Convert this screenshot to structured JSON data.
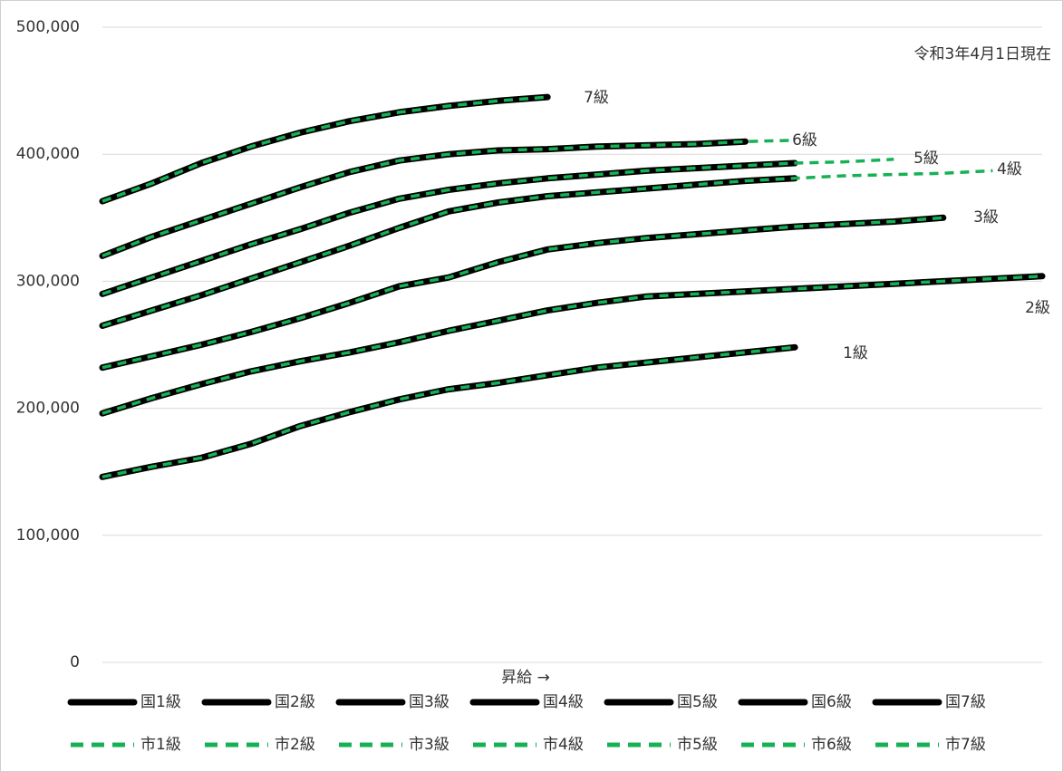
{
  "chart_data": {
    "type": "line",
    "note": "令和3年4月1日現在",
    "xlabel": "昇給 →",
    "categories": [
      null,
      null,
      null,
      null,
      null,
      null,
      null,
      null,
      null,
      null,
      null,
      null,
      null,
      null,
      null,
      null,
      null,
      null,
      null,
      null
    ],
    "ylim": [
      0,
      500000
    ],
    "yticks": [
      0,
      {
        "value": 100000,
        "label": "100,000"
      },
      {
        "value": 200000,
        "label": "200,000"
      },
      {
        "value": 300000,
        "label": "300,000"
      },
      {
        "value": 400000,
        "label": "400,000"
      },
      {
        "value": 500000,
        "label": "500,000"
      }
    ],
    "grid": true,
    "legend": "bottom",
    "series": [
      {
        "name": "国1級",
        "color": "#000000",
        "dashed": false,
        "values": [
          146000,
          154000,
          161000,
          172000,
          186000,
          197000,
          207000,
          215000,
          220000,
          226000,
          232000,
          236000,
          240000,
          244000,
          248000,
          null,
          null,
          null,
          null,
          null
        ]
      },
      {
        "name": "国2級",
        "color": "#000000",
        "dashed": false,
        "values": [
          196000,
          208000,
          219000,
          229000,
          237000,
          244000,
          252000,
          261000,
          269000,
          277000,
          283000,
          288000,
          290000,
          292000,
          294000,
          296000,
          298000,
          300000,
          302000,
          304000
        ]
      },
      {
        "name": "国3級",
        "color": "#000000",
        "dashed": false,
        "values": [
          232000,
          241000,
          250000,
          260000,
          271000,
          283000,
          296000,
          303000,
          315000,
          325000,
          330000,
          334000,
          337000,
          340000,
          343000,
          345000,
          347000,
          350000,
          null,
          null
        ]
      },
      {
        "name": "国4級",
        "color": "#000000",
        "dashed": false,
        "values": [
          265000,
          277000,
          289000,
          302000,
          315000,
          328000,
          342000,
          355000,
          362000,
          367000,
          370000,
          373000,
          376000,
          379000,
          381000,
          null,
          null,
          null,
          null,
          null
        ]
      },
      {
        "name": "国5級",
        "color": "#000000",
        "dashed": false,
        "values": [
          290000,
          303000,
          316000,
          329000,
          341000,
          354000,
          365000,
          372000,
          377000,
          381000,
          384000,
          387000,
          389000,
          391000,
          393000,
          null,
          null,
          null,
          null,
          null
        ]
      },
      {
        "name": "国6級",
        "color": "#000000",
        "dashed": false,
        "values": [
          320000,
          335000,
          348000,
          361000,
          374000,
          386000,
          395000,
          400000,
          403000,
          404000,
          406000,
          407000,
          408000,
          410000,
          null,
          null,
          null,
          null,
          null,
          null
        ]
      },
      {
        "name": "国7級",
        "color": "#000000",
        "dashed": false,
        "values": [
          363000,
          377000,
          393000,
          406000,
          417000,
          426000,
          433000,
          438000,
          442000,
          445000,
          null,
          null,
          null,
          null,
          null,
          null,
          null,
          null,
          null,
          null
        ]
      },
      {
        "name": "市1級",
        "color": "#17b155",
        "dashed": true,
        "values": [
          146000,
          154000,
          161000,
          172000,
          186000,
          197000,
          207000,
          215000,
          220000,
          226000,
          232000,
          236000,
          240000,
          244000,
          248000,
          null,
          null,
          null,
          null,
          null
        ]
      },
      {
        "name": "市2級",
        "color": "#17b155",
        "dashed": true,
        "values": [
          196000,
          208000,
          219000,
          229000,
          237000,
          244000,
          252000,
          261000,
          269000,
          277000,
          283000,
          288000,
          290000,
          292000,
          294000,
          296000,
          298000,
          300000,
          302000,
          304000
        ]
      },
      {
        "name": "市3級",
        "color": "#17b155",
        "dashed": true,
        "values": [
          232000,
          241000,
          250000,
          260000,
          271000,
          283000,
          296000,
          303000,
          315000,
          325000,
          330000,
          334000,
          337000,
          340000,
          343000,
          345000,
          347000,
          350000,
          null,
          null
        ]
      },
      {
        "name": "市4級",
        "color": "#17b155",
        "dashed": true,
        "values": [
          265000,
          277000,
          289000,
          302000,
          315000,
          328000,
          342000,
          355000,
          362000,
          367000,
          370000,
          373000,
          376000,
          379000,
          381000,
          383000,
          384000,
          385000,
          387000,
          null
        ]
      },
      {
        "name": "市5級",
        "color": "#17b155",
        "dashed": true,
        "values": [
          290000,
          303000,
          316000,
          329000,
          341000,
          354000,
          365000,
          372000,
          377000,
          381000,
          384000,
          387000,
          389000,
          391000,
          393000,
          394000,
          396000,
          null,
          null,
          null
        ]
      },
      {
        "name": "市6級",
        "color": "#17b155",
        "dashed": true,
        "values": [
          320000,
          335000,
          348000,
          361000,
          374000,
          386000,
          395000,
          400000,
          403000,
          404000,
          406000,
          407000,
          408000,
          410000,
          411000,
          null,
          null,
          null,
          null,
          null
        ]
      },
      {
        "name": "市7級",
        "color": "#17b155",
        "dashed": true,
        "values": [
          363000,
          377000,
          393000,
          406000,
          417000,
          426000,
          433000,
          438000,
          442000,
          445000,
          null,
          null,
          null,
          null,
          null,
          null,
          null,
          null,
          null,
          null
        ]
      }
    ],
    "annotations": [
      "7級",
      "6級",
      "5級",
      "4級",
      "3級",
      "2級",
      "1級"
    ]
  }
}
